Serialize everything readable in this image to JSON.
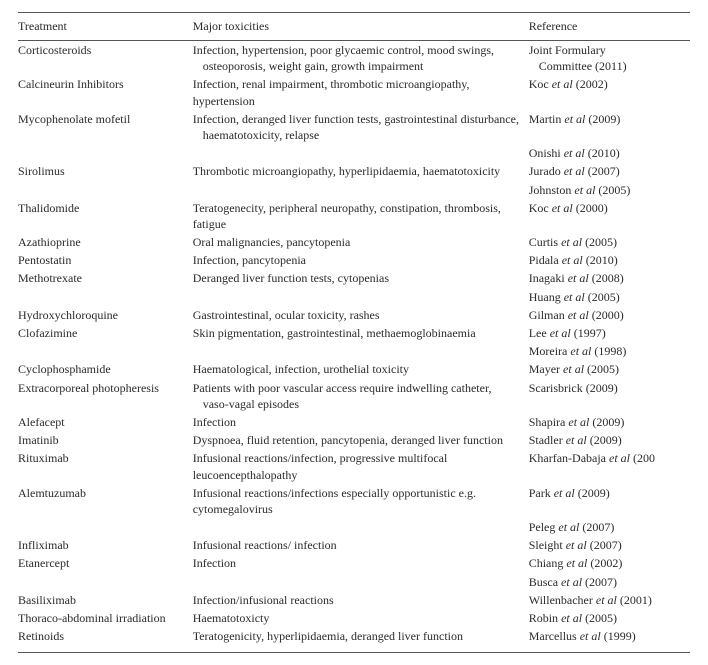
{
  "headers": {
    "treatment": "Treatment",
    "toxicities": "Major toxicities",
    "reference": "Reference"
  },
  "rows": [
    {
      "treatment": "Corticosteroids",
      "toxicities": "Infection, hypertension, poor glycaemic control, mood swings,",
      "tox_cont": "osteoporosis, weight gain, growth impairment",
      "ref": "Joint Formulary",
      "ref_cont": "Committee (2011)"
    },
    {
      "treatment": "Calcineurin Inhibitors",
      "toxicities": "Infection, renal impairment, thrombotic microangiopathy, hypertension",
      "ref_pre": "Koc ",
      "ref_em": "et al",
      "ref_post": " (2002)"
    },
    {
      "treatment": "Mycophenolate mofetil",
      "toxicities": "Infection, deranged liver function tests, gastrointestinal disturbance,",
      "tox_cont": "haematotoxicity, relapse",
      "ref_pre": "Martin ",
      "ref_em": "et al",
      "ref_post": " (2009)",
      "ref2_pre": "Onishi ",
      "ref2_em": "et al",
      "ref2_post": " (2010)"
    },
    {
      "treatment": "Sirolimus",
      "toxicities": "Thrombotic microangiopathy, hyperlipidaemia, haematotoxicity",
      "ref_pre": "Jurado ",
      "ref_em": "et al",
      "ref_post": " (2007)",
      "ref2_pre": "Johnston ",
      "ref2_em": "et al",
      "ref2_post": " (2005)"
    },
    {
      "treatment": "Thalidomide",
      "toxicities": "Teratogenecity, peripheral neuropathy, constipation, thrombosis, fatigue",
      "ref_pre": "Koc ",
      "ref_em": "et al",
      "ref_post": " (2000)"
    },
    {
      "treatment": "Azathioprine",
      "toxicities": "Oral malignancies, pancytopenia",
      "ref_pre": "Curtis ",
      "ref_em": "et al",
      "ref_post": " (2005)"
    },
    {
      "treatment": "Pentostatin",
      "toxicities": "Infection, pancytopenia",
      "ref_pre": "Pidala ",
      "ref_em": "et al",
      "ref_post": " (2010)"
    },
    {
      "treatment": "Methotrexate",
      "toxicities": "Deranged liver function tests, cytopenias",
      "ref_pre": "Inagaki ",
      "ref_em": "et al",
      "ref_post": " (2008)",
      "ref2_pre": "Huang ",
      "ref2_em": "et al",
      "ref2_post": " (2005)"
    },
    {
      "treatment": "Hydroxychloroquine",
      "toxicities": "Gastrointestinal, ocular toxicity, rashes",
      "ref_pre": "Gilman ",
      "ref_em": "et al",
      "ref_post": " (2000)"
    },
    {
      "treatment": "Clofazimine",
      "toxicities": "Skin pigmentation, gastrointestinal, methaemoglobinaemia",
      "ref_pre": "Lee ",
      "ref_em": "et al",
      "ref_post": " (1997)",
      "ref2_pre": "Moreira ",
      "ref2_em": "et al",
      "ref2_post": " (1998)"
    },
    {
      "treatment": "Cyclophosphamide",
      "toxicities": "Haematological, infection, urothelial toxicity",
      "ref_pre": "Mayer ",
      "ref_em": "et al",
      "ref_post": " (2005)"
    },
    {
      "treatment": "Extracorporeal photopheresis",
      "toxicities": "Patients with poor vascular access require indwelling catheter,",
      "tox_cont": "vaso-vagal episodes",
      "ref": "Scarisbrick (2009)"
    },
    {
      "treatment": "Alefacept",
      "toxicities": "Infection",
      "ref_pre": "Shapira ",
      "ref_em": "et al",
      "ref_post": " (2009)"
    },
    {
      "treatment": "Imatinib",
      "toxicities": "Dyspnoea, fluid retention, pancytopenia, deranged liver function",
      "ref_pre": "Stadler ",
      "ref_em": "et al",
      "ref_post": " (2009)"
    },
    {
      "treatment": "Rituximab",
      "toxicities": "Infusional reactions/infection, progressive multifocal leucoencepthalopathy",
      "ref_pre": "Kharfan-Dabaja ",
      "ref_em": "et al",
      "ref_post": " (200"
    },
    {
      "treatment": "Alemtuzumab",
      "toxicities": "Infusional reactions/infections especially opportunistic e.g. cytomegalovirus",
      "ref_pre": "Park ",
      "ref_em": "et al",
      "ref_post": " (2009)",
      "ref2_pre": "Peleg ",
      "ref2_em": "et al",
      "ref2_post": " (2007)"
    },
    {
      "treatment": "Infliximab",
      "toxicities": "Infusional reactions/ infection",
      "ref_pre": "Sleight ",
      "ref_em": "et al",
      "ref_post": " (2007)"
    },
    {
      "treatment": "Etanercept",
      "toxicities": "Infection",
      "ref_pre": "Chiang ",
      "ref_em": "et al",
      "ref_post": " (2002)",
      "ref2_pre": "Busca ",
      "ref2_em": "et al",
      "ref2_post": " (2007)"
    },
    {
      "treatment": "Basiliximab",
      "toxicities": "Infection/infusional reactions",
      "ref_pre": "Willenbacher ",
      "ref_em": "et al",
      "ref_post": " (2001)"
    },
    {
      "treatment": "Thoraco-abdominal irradiation",
      "toxicities": "Haematotoxicty",
      "ref_pre": "Robin ",
      "ref_em": "et al",
      "ref_post": " (2005)"
    },
    {
      "treatment": "Retinoids",
      "toxicities": "Teratogenicity, hyperlipidaemia, deranged liver function",
      "ref_pre": "Marcellus ",
      "ref_em": "et al",
      "ref_post": " (1999)"
    }
  ]
}
